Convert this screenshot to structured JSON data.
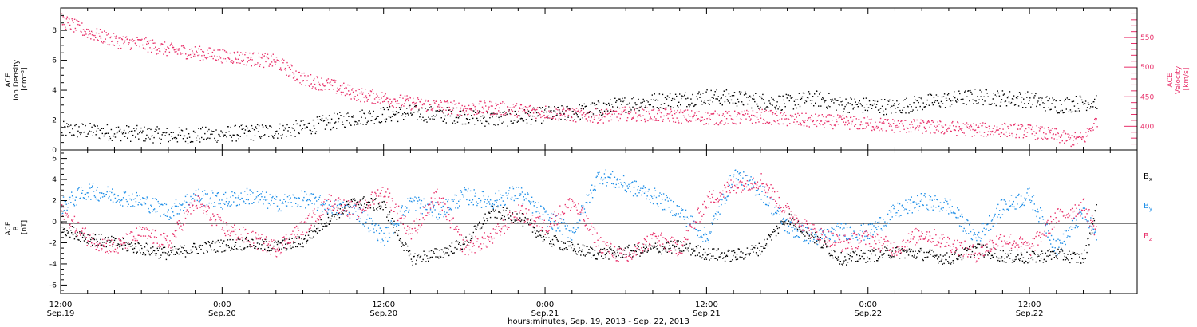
{
  "chart_data": [
    {
      "type": "scatter",
      "panel": "top",
      "ylabel_lines": [
        "ACE",
        "Ion Density",
        "[cm⁻³]"
      ],
      "ylabel_right_lines": [
        "ACE",
        "Velocity",
        "[km/s]"
      ],
      "ylim": [
        0,
        9.5
      ],
      "y_ticks": [
        0,
        2,
        4,
        6,
        8
      ],
      "y2lim": [
        360,
        600
      ],
      "y2_ticks": [
        400,
        450,
        500,
        550
      ],
      "series": [
        {
          "name": "Ion Density",
          "axis": "left",
          "color": "#000000",
          "x_hours": [
            0,
            2,
            4,
            6,
            8,
            10,
            12,
            14,
            16,
            18,
            20,
            22,
            24,
            26,
            28,
            30,
            32,
            34,
            36,
            38,
            40,
            42,
            44,
            46,
            48,
            50,
            52,
            54,
            56,
            58,
            60,
            62,
            64,
            66,
            68,
            70,
            72,
            74,
            76,
            77
          ],
          "values": [
            1.4,
            1.3,
            1.2,
            1.1,
            1.0,
            1.0,
            1.1,
            1.2,
            1.3,
            1.5,
            1.9,
            2.2,
            2.4,
            2.5,
            2.4,
            2.3,
            2.1,
            2.2,
            2.4,
            2.5,
            2.8,
            3.1,
            3.3,
            3.4,
            3.6,
            3.5,
            3.3,
            3.2,
            3.5,
            3.1,
            3.0,
            2.9,
            3.2,
            3.4,
            3.6,
            3.5,
            3.4,
            3.0,
            3.2,
            3.3
          ]
        },
        {
          "name": "Velocity",
          "axis": "right",
          "color": "#e8306a",
          "x_hours": [
            0,
            2,
            4,
            6,
            8,
            10,
            12,
            14,
            16,
            18,
            20,
            22,
            24,
            26,
            28,
            30,
            32,
            34,
            36,
            38,
            40,
            42,
            44,
            46,
            48,
            50,
            52,
            54,
            56,
            58,
            60,
            62,
            64,
            66,
            68,
            70,
            72,
            74,
            75,
            76,
            77
          ],
          "values": [
            580,
            560,
            545,
            540,
            530,
            525,
            520,
            515,
            510,
            480,
            470,
            455,
            448,
            440,
            435,
            430,
            432,
            428,
            425,
            420,
            418,
            422,
            420,
            418,
            415,
            415,
            418,
            412,
            410,
            408,
            405,
            402,
            400,
            398,
            395,
            395,
            392,
            385,
            378,
            380,
            412
          ]
        }
      ]
    },
    {
      "type": "scatter",
      "panel": "bottom",
      "ylabel_lines": [
        "ACE",
        "B",
        "[nT]"
      ],
      "ylim": [
        -6.8,
        6.8
      ],
      "y_ticks": [
        -6,
        -4,
        -2,
        0,
        2,
        4,
        6
      ],
      "series": [
        {
          "name": "Bx",
          "name_base": "B",
          "name_sub": "x",
          "color": "#000000",
          "x_hours": [
            0,
            2,
            4,
            6,
            8,
            10,
            12,
            14,
            16,
            18,
            20,
            22,
            24,
            26,
            28,
            30,
            32,
            34,
            36,
            38,
            40,
            42,
            44,
            46,
            48,
            50,
            52,
            54,
            56,
            58,
            60,
            62,
            64,
            66,
            68,
            70,
            72,
            74,
            76,
            77
          ],
          "values": [
            -0.5,
            -1.5,
            -2.0,
            -2.5,
            -3.0,
            -2.5,
            -2.2,
            -2.0,
            -2.3,
            -1.8,
            0.5,
            2.0,
            1.5,
            -3.5,
            -3.0,
            -2.0,
            1.0,
            0.5,
            -1.5,
            -2.5,
            -3.0,
            -2.8,
            -2.5,
            -2.3,
            -3.0,
            -3.2,
            -2.5,
            0.5,
            -1.5,
            -3.5,
            -3.2,
            -2.8,
            -3.0,
            -3.5,
            -2.5,
            -3.2,
            -3.4,
            -3.0,
            -3.5,
            1.5
          ]
        },
        {
          "name": "By",
          "name_base": "B",
          "name_sub": "y",
          "color": "#1f8fe8",
          "x_hours": [
            0,
            2,
            4,
            6,
            8,
            10,
            12,
            14,
            16,
            18,
            20,
            22,
            24,
            26,
            28,
            30,
            32,
            34,
            36,
            38,
            40,
            42,
            44,
            46,
            48,
            50,
            52,
            54,
            56,
            58,
            60,
            62,
            64,
            66,
            68,
            70,
            72,
            74,
            76,
            77
          ],
          "values": [
            1.5,
            3.0,
            2.5,
            2.0,
            1.0,
            2.5,
            2.0,
            2.5,
            1.8,
            2.2,
            1.5,
            1.0,
            -1.5,
            2.0,
            1.0,
            2.5,
            2.0,
            2.8,
            0.5,
            -1.0,
            4.5,
            3.5,
            2.5,
            1.0,
            -1.5,
            4.5,
            3.0,
            -0.5,
            -1.5,
            -0.8,
            -1.0,
            1.0,
            2.0,
            1.5,
            -1.5,
            1.5,
            2.5,
            -2.5,
            1.0,
            -1.5
          ]
        },
        {
          "name": "Bz",
          "name_base": "B",
          "name_sub": "z",
          "color": "#e8306a",
          "x_hours": [
            0,
            2,
            4,
            6,
            8,
            10,
            12,
            14,
            16,
            18,
            20,
            22,
            24,
            26,
            28,
            30,
            32,
            34,
            36,
            38,
            40,
            42,
            44,
            46,
            48,
            50,
            52,
            54,
            56,
            58,
            60,
            62,
            64,
            66,
            68,
            70,
            72,
            74,
            76,
            77
          ],
          "values": [
            1.0,
            -1.5,
            -2.5,
            -1.0,
            -2.0,
            2.0,
            -0.5,
            -1.5,
            -2.5,
            -0.5,
            2.0,
            1.0,
            3.0,
            -1.0,
            2.5,
            -2.5,
            -1.5,
            1.0,
            -0.5,
            2.0,
            -2.0,
            -3.5,
            -1.5,
            -2.5,
            2.0,
            3.5,
            4.0,
            1.0,
            -1.0,
            -2.0,
            -1.5,
            -2.5,
            -1.0,
            -2.0,
            -3.0,
            -1.5,
            -2.5,
            0.5,
            1.5,
            -1.0
          ]
        }
      ]
    }
  ],
  "x_axis": {
    "xlim_hours": [
      0,
      80
    ],
    "major_tick_hours": [
      0,
      12,
      24,
      36,
      48,
      60,
      72
    ],
    "tick_labels": [
      {
        "time": "12:00",
        "date": "Sep.19"
      },
      {
        "time": "0:00",
        "date": "Sep.20"
      },
      {
        "time": "12:00",
        "date": "Sep.20"
      },
      {
        "time": "0:00",
        "date": "Sep.21"
      },
      {
        "time": "12:00",
        "date": "Sep.21"
      },
      {
        "time": "0:00",
        "date": "Sep.22"
      },
      {
        "time": "12:00",
        "date": "Sep.22"
      }
    ],
    "xlabel": "hours:minutes, Sep. 19, 2013 - Sep. 22, 2013"
  }
}
